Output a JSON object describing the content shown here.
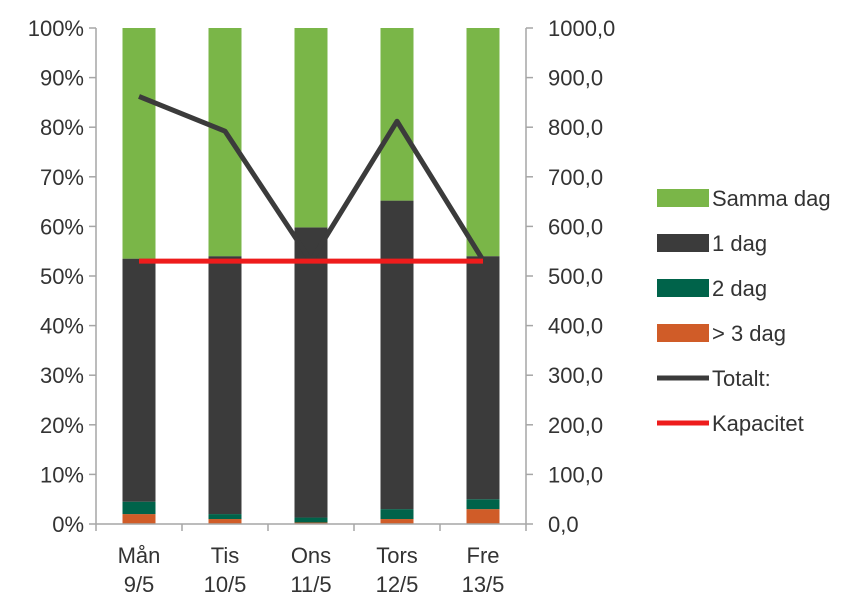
{
  "chart_data": {
    "type": "bar",
    "stacked": true,
    "percent_stacked": true,
    "categories": [
      [
        "Mån",
        "9/5"
      ],
      [
        "Tis",
        "10/5"
      ],
      [
        "Ons",
        "11/5"
      ],
      [
        "Tors",
        "12/5"
      ],
      [
        "Fre",
        "13/5"
      ]
    ],
    "y_left": {
      "min": 0,
      "max": 100,
      "ticks": [
        "0%",
        "10%",
        "20%",
        "30%",
        "40%",
        "50%",
        "60%",
        "70%",
        "80%",
        "90%",
        "100%"
      ]
    },
    "y_right": {
      "min": 0,
      "max": 1000,
      "ticks": [
        "0,0",
        "100,0",
        "200,0",
        "300,0",
        "400,0",
        "500,0",
        "600,0",
        "700,0",
        "800,0",
        "900,0",
        "1000,0"
      ]
    },
    "bar_series": [
      {
        "name": "> 3 dag",
        "color": "#d05c28",
        "values": [
          2,
          1,
          0.3,
          1,
          3
        ]
      },
      {
        "name": "2 dag",
        "color": "#00634a",
        "values": [
          2.5,
          1,
          1,
          2,
          2
        ]
      },
      {
        "name": "1 dag",
        "color": "#3b3b3b",
        "values": [
          49,
          52,
          58.5,
          62.2,
          49
        ]
      },
      {
        "name": "Samma dag",
        "color": "#7ab648",
        "values": [
          46.5,
          46,
          40.2,
          34.8,
          46
        ]
      }
    ],
    "line_series": [
      {
        "name": "Totalt:",
        "color": "#3b3b3b",
        "axis": "right",
        "values": [
          862,
          792,
          530,
          812,
          532
        ]
      },
      {
        "name": "Kapacitet",
        "color": "#ee1c1c",
        "axis": "right",
        "values": [
          530,
          530,
          530,
          530,
          530
        ]
      }
    ],
    "legend": {
      "position": "right",
      "items": [
        {
          "name": "Samma dag",
          "color": "#7ab648",
          "kind": "box"
        },
        {
          "name": "1 dag",
          "color": "#3b3b3b",
          "kind": "box"
        },
        {
          "name": "2 dag",
          "color": "#00634a",
          "kind": "box"
        },
        {
          "name": "> 3 dag",
          "color": "#d05c28",
          "kind": "box"
        },
        {
          "name": "Totalt:",
          "color": "#3b3b3b",
          "kind": "line"
        },
        {
          "name": "Kapacitet",
          "color": "#ee1c1c",
          "kind": "line"
        }
      ]
    },
    "grid": false
  }
}
